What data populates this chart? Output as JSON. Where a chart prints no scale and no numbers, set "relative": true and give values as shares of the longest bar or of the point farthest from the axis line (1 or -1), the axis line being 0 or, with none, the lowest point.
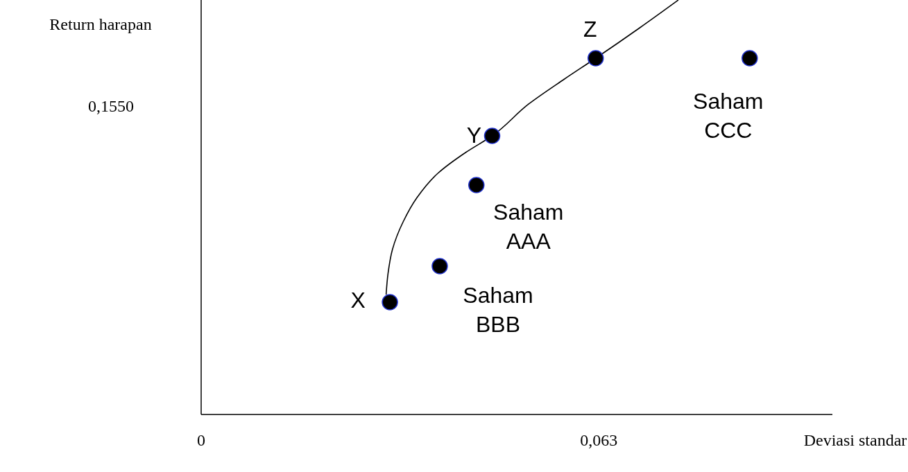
{
  "chart_data": {
    "type": "scatter",
    "xlabel": "Deviasi standar",
    "ylabel": "Return harapan",
    "xlim": [
      0,
      0.1
    ],
    "relative": true,
    "xticks": [
      {
        "value": 0,
        "label": "0"
      },
      {
        "value": 0.063,
        "label": "0,063"
      }
    ],
    "grid": false,
    "marker": "circle",
    "series": [
      {
        "type": "line",
        "color": "#000000",
        "marker": "none",
        "line_style": "solid",
        "x": [
          0.0293,
          0.0296,
          0.0303,
          0.032,
          0.0342,
          0.0375,
          0.0419,
          0.0461,
          0.0519,
          0.0574,
          0.0625,
          0.0695,
          0.0756
        ],
        "values": [
          0.2893,
          0.3395,
          0.398,
          0.4649,
          0.5234,
          0.5819,
          0.6321,
          0.6722,
          0.7492,
          0.8077,
          0.8595,
          0.9331,
          1
        ]
      },
      {
        "color": "#000000",
        "x": [
          0.0299,
          0.0378,
          0.0436,
          0.0461,
          0.0625,
          0.0869
        ],
        "values": [
          0.2709,
          0.3579,
          0.5535,
          0.6722,
          0.8595,
          0.8595
        ]
      }
    ],
    "annotations": [
      {
        "text": "X",
        "x": 0.0299,
        "y": 0.2709
      },
      {
        "text": "Y",
        "x": 0.0461,
        "y": 0.6722
      },
      {
        "text": "Z",
        "x": 0.0625,
        "y": 0.8595
      },
      {
        "text": "Saham AAA",
        "x": 0.0436,
        "y": 0.5535
      },
      {
        "text": "Saham BBB",
        "x": 0.0378,
        "y": 0.3579
      },
      {
        "text": "Saham CCC",
        "x": 0.0869,
        "y": 0.8595
      },
      "0,1550"
    ]
  }
}
